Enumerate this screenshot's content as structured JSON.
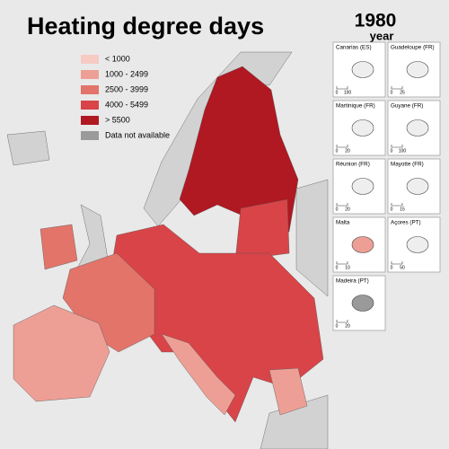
{
  "title": "Heating degree days",
  "year": {
    "value": "1980",
    "label": "year"
  },
  "legend": [
    {
      "label": "< 1000",
      "color": "#f7cac4"
    },
    {
      "label": "1000 - 2499",
      "color": "#ee9f95"
    },
    {
      "label": "2500 - 3999",
      "color": "#e3746a"
    },
    {
      "label": "4000 - 5499",
      "color": "#d84448"
    },
    {
      "label": "> 5500",
      "color": "#b01822"
    },
    {
      "label": "Data not available",
      "color": "#9a9a9a"
    }
  ],
  "insets": [
    {
      "name": "Canarias (ES)",
      "scale": [
        0,
        100
      ]
    },
    {
      "name": "Guadeloupe (FR)",
      "scale": [
        0,
        25
      ]
    },
    {
      "name": "Martinique (FR)",
      "scale": [
        0,
        20
      ]
    },
    {
      "name": "Guyane (FR)",
      "scale": [
        0,
        100
      ]
    },
    {
      "name": "Réunion (FR)",
      "scale": [
        0,
        20
      ]
    },
    {
      "name": "Mayotte (FR)",
      "scale": [
        0,
        15
      ]
    },
    {
      "name": "Malta",
      "scale": [
        0,
        10
      ]
    },
    {
      "name": "Açores (PT)",
      "scale": [
        0,
        50
      ]
    },
    {
      "name": "Madeira (PT)",
      "scale": [
        0,
        20
      ]
    }
  ]
}
